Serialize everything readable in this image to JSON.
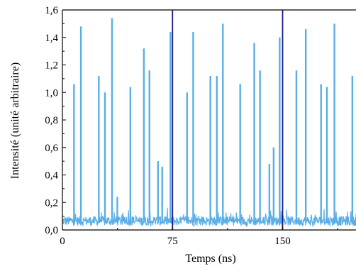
{
  "chart_data": {
    "type": "line",
    "title": "",
    "xlabel": "Temps (ns)",
    "ylabel": "Intensité (unité arbitraire)",
    "xlim": [
      0,
      200
    ],
    "ylim": [
      0,
      1.6
    ],
    "xticks": [
      0,
      75,
      150
    ],
    "xtick_labels": [
      "0",
      "75",
      "150"
    ],
    "yticks": [
      0,
      0.2,
      0.4,
      0.6,
      0.8,
      1.0,
      1.2,
      1.4,
      1.6
    ],
    "ytick_labels": [
      "0,0",
      "0,2",
      "0,4",
      "0,6",
      "0,8",
      "1,0",
      "1,2",
      "1,4",
      "1,6"
    ],
    "vertical_lines_x": [
      75,
      150
    ],
    "vertical_line_color": "#1a1a8c",
    "series_color": "#5aaee6",
    "grid": false,
    "legend": "none",
    "peaks": [
      {
        "x": 7.9,
        "y": 1.06
      },
      {
        "x": 12.6,
        "y": 1.48
      },
      {
        "x": 24.8,
        "y": 1.12
      },
      {
        "x": 29.0,
        "y": 1.0
      },
      {
        "x": 33.8,
        "y": 1.54
      },
      {
        "x": 37.4,
        "y": 0.24
      },
      {
        "x": 46.3,
        "y": 1.04
      },
      {
        "x": 55.5,
        "y": 1.32
      },
      {
        "x": 59.3,
        "y": 1.16
      },
      {
        "x": 65.1,
        "y": 0.5
      },
      {
        "x": 68.0,
        "y": 0.46
      },
      {
        "x": 73.6,
        "y": 1.44
      },
      {
        "x": 84.9,
        "y": 1.0
      },
      {
        "x": 89.1,
        "y": 1.44
      },
      {
        "x": 100.8,
        "y": 1.12
      },
      {
        "x": 105.2,
        "y": 1.12
      },
      {
        "x": 109.3,
        "y": 1.5
      },
      {
        "x": 121.1,
        "y": 1.06
      },
      {
        "x": 130.7,
        "y": 1.36
      },
      {
        "x": 134.6,
        "y": 1.16
      },
      {
        "x": 141.0,
        "y": 0.48
      },
      {
        "x": 143.9,
        "y": 0.6
      },
      {
        "x": 148.0,
        "y": 1.4
      },
      {
        "x": 159.4,
        "y": 1.16
      },
      {
        "x": 165.8,
        "y": 1.46
      },
      {
        "x": 176.2,
        "y": 1.06
      },
      {
        "x": 180.2,
        "y": 1.04
      },
      {
        "x": 185.3,
        "y": 1.5
      },
      {
        "x": 197.5,
        "y": 1.12
      }
    ]
  }
}
